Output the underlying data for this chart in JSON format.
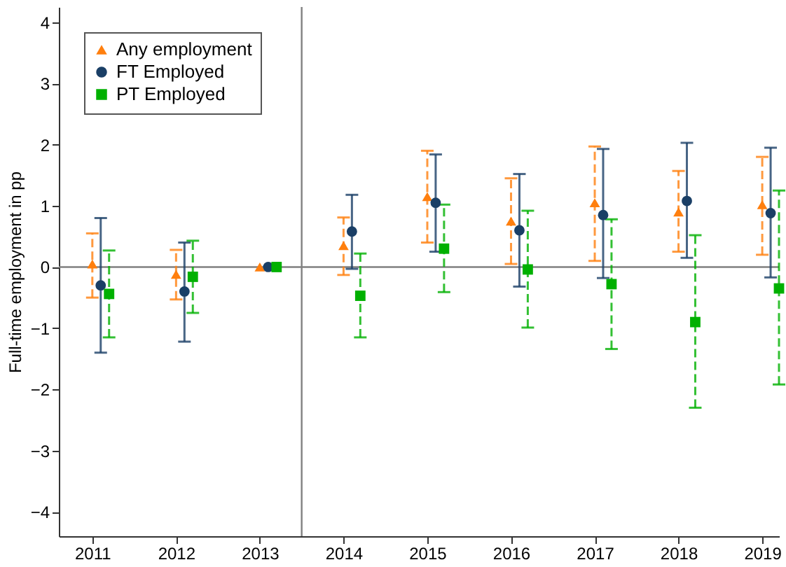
{
  "chart_data": {
    "type": "scatter",
    "ylabel": "Full-time employment in pp",
    "xlim": [
      2010.6,
      2019.2
    ],
    "xticks": [
      2011,
      2012,
      2013,
      2014,
      2015,
      2016,
      2017,
      2018,
      2019
    ],
    "ylim": [
      -4.4,
      4.25
    ],
    "yticks": [
      -4,
      -3,
      -2,
      -1,
      0,
      1,
      2,
      3,
      4
    ],
    "grid": false,
    "legend": "top left",
    "ref_lines": [
      {
        "axis": "y",
        "value": 0,
        "color": "#808080"
      },
      {
        "axis": "x",
        "value": 2013.5,
        "color": "#808080"
      }
    ],
    "series": [
      {
        "name": "Any employment",
        "color": "#ff7f0e",
        "marker": "triangle",
        "line_style": "dashed",
        "x": [
          2011,
          2012,
          2013,
          2014,
          2015,
          2016,
          2017,
          2018,
          2019
        ],
        "values": [
          0.05,
          -0.12,
          0,
          0.35,
          1.15,
          0.75,
          1.05,
          0.9,
          1.02
        ],
        "errors": [
          [
            -0.5,
            0.55
          ],
          [
            -0.53,
            0.28
          ],
          null,
          [
            -0.13,
            0.81
          ],
          [
            0.4,
            1.9
          ],
          [
            0.05,
            1.45
          ],
          [
            0.1,
            1.97
          ],
          [
            0.25,
            1.57
          ],
          [
            0.2,
            1.8
          ]
        ]
      },
      {
        "name": "FT Employed",
        "color": "#1a3f66",
        "marker": "circle",
        "line_style": "solid",
        "x": [
          2011.1,
          2012.1,
          2013.1,
          2014.1,
          2015.1,
          2016.1,
          2017.1,
          2018.1,
          2019.1
        ],
        "values": [
          -0.3,
          -0.4,
          0,
          0.58,
          1.05,
          0.6,
          0.85,
          1.08,
          0.88
        ],
        "errors": [
          [
            -1.4,
            0.8
          ],
          [
            -1.22,
            0.4
          ],
          null,
          [
            -0.03,
            1.18
          ],
          [
            0.25,
            1.84
          ],
          [
            -0.32,
            1.52
          ],
          [
            -0.18,
            1.93
          ],
          [
            0.15,
            2.03
          ],
          [
            -0.17,
            1.95
          ]
        ]
      },
      {
        "name": "PT Employed",
        "color": "#00b000",
        "marker": "square",
        "line_style": "dashed",
        "x": [
          2011.2,
          2012.2,
          2013.2,
          2014.2,
          2015.2,
          2016.2,
          2017.2,
          2018.2,
          2019.2
        ],
        "values": [
          -0.44,
          -0.16,
          0,
          -0.47,
          0.3,
          -0.04,
          -0.28,
          -0.9,
          -0.35
        ],
        "errors": [
          [
            -1.15,
            0.27
          ],
          [
            -0.75,
            0.43
          ],
          null,
          [
            -1.15,
            0.22
          ],
          [
            -0.41,
            1.02
          ],
          [
            -0.99,
            0.92
          ],
          [
            -1.34,
            0.78
          ],
          [
            -2.3,
            0.52
          ],
          [
            -1.92,
            1.25
          ]
        ]
      }
    ]
  }
}
